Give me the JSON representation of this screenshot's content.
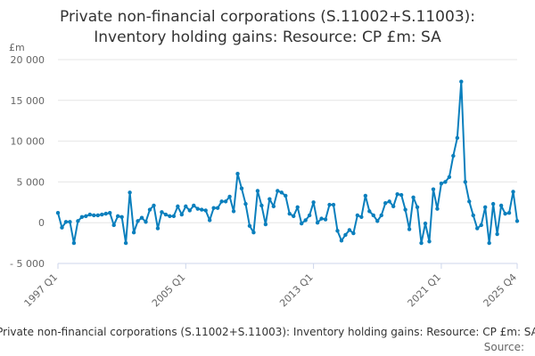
{
  "chart_data": {
    "type": "line",
    "title": [
      "Private non-financial corporations (S.11002+S.11003):",
      "Inventory holding gains: Resource: CP £m: SA"
    ],
    "unit_label": "£m",
    "y_ticks": [
      "20 000",
      "15 000",
      "10 000",
      "5 000",
      "0",
      "- 5 000"
    ],
    "ylim": [
      -5000,
      20000
    ],
    "x_tick_labels": [
      "1997 Q1",
      "2005 Q1",
      "2013 Q1",
      "2021 Q1",
      "2025 Q4"
    ],
    "grid": true,
    "legend": "Private non-financial corporations (S.11002+S.11003): Inventory holding gains: Resource: CP £m: SA",
    "source": "Source:",
    "series_color": "#0a7fbd",
    "series": [
      {
        "name": "Private non-financial corporations (S.11002+S.11003): Inventory holding gains: Resource: CP £m: SA",
        "start": "1997 Q1",
        "values": [
          1200,
          -600,
          100,
          100,
          -2500,
          200,
          700,
          800,
          1000,
          900,
          900,
          1000,
          1100,
          1200,
          -300,
          800,
          700,
          -2500,
          3700,
          -1200,
          200,
          600,
          100,
          1600,
          2100,
          -700,
          1300,
          1000,
          800,
          800,
          2000,
          1000,
          2000,
          1500,
          2100,
          1700,
          1600,
          1500,
          300,
          1800,
          1800,
          2600,
          2600,
          3200,
          1400,
          6000,
          4200,
          2300,
          -400,
          -1200,
          3900,
          2100,
          -200,
          2900,
          2000,
          3900,
          3700,
          3300,
          1100,
          800,
          1900,
          -100,
          300,
          900,
          2500,
          0,
          500,
          400,
          2200,
          2200,
          -1000,
          -2200,
          -1500,
          -900,
          -1300,
          900,
          700,
          3300,
          1400,
          900,
          200,
          900,
          2400,
          2600,
          2000,
          3500,
          3400,
          1600,
          -800,
          3100,
          1900,
          -2500,
          -100,
          -2300,
          4100,
          1700,
          4800,
          5000,
          5600,
          8200,
          10400,
          17300,
          5000,
          2600,
          900,
          -700,
          -300,
          1900,
          -2500,
          2300,
          -1400,
          2100,
          1100,
          1200,
          3800,
          200
        ]
      }
    ]
  }
}
